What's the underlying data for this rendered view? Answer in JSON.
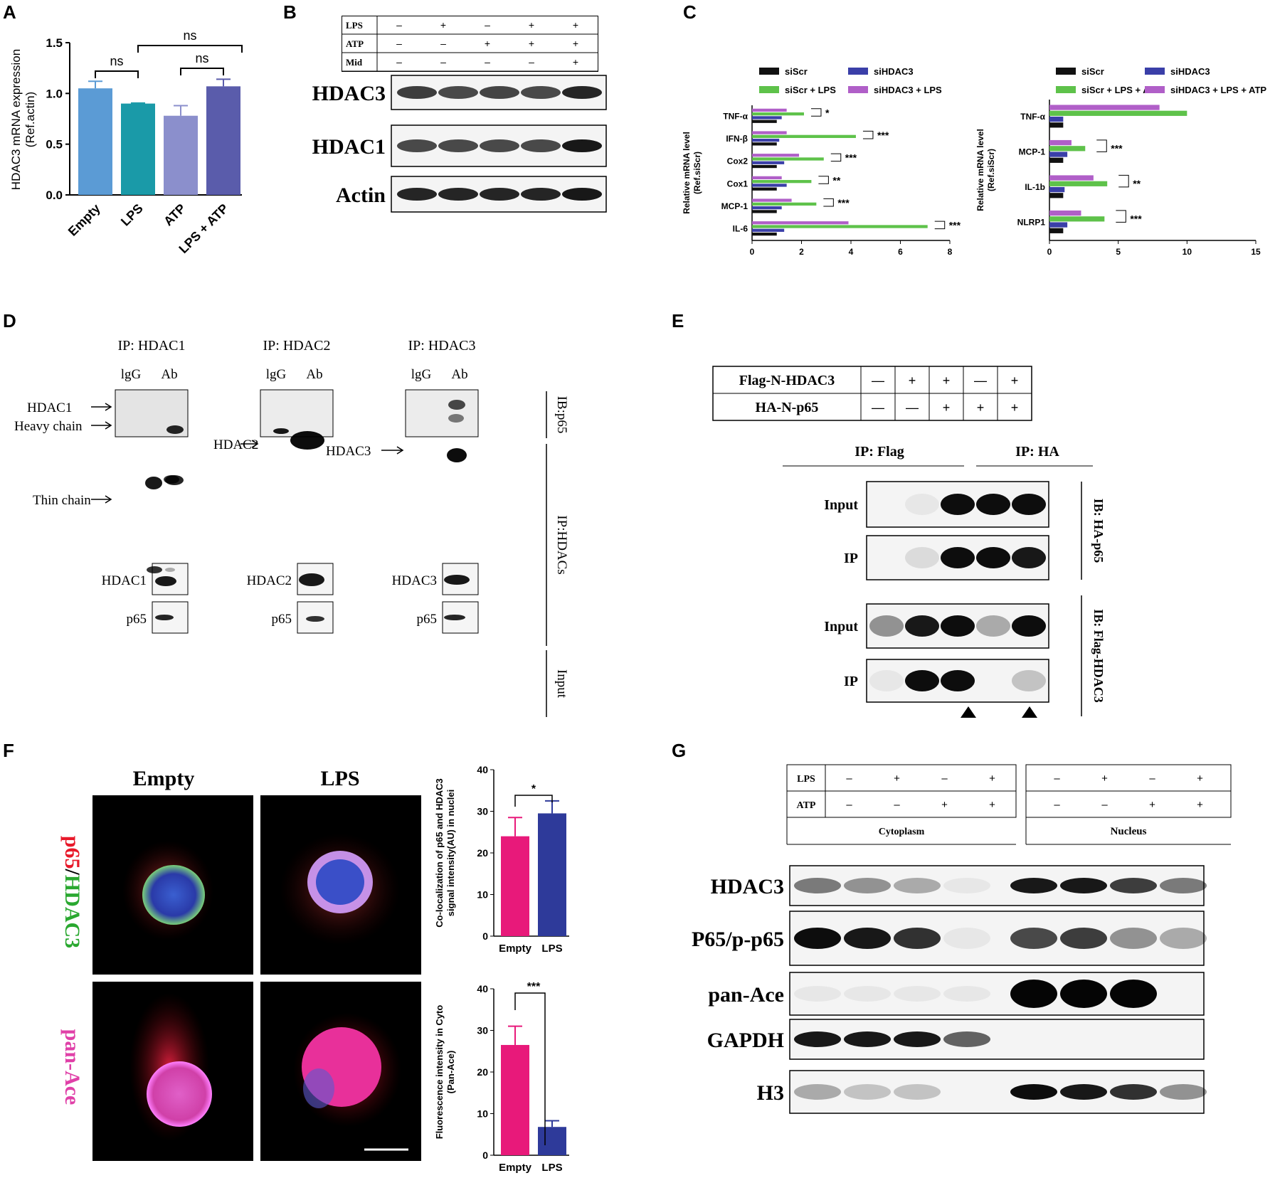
{
  "panels": {
    "A": {
      "label": "A",
      "chart_data": {
        "type": "bar",
        "categories": [
          "Empty",
          "LPS",
          "ATP",
          "LPS + ATP"
        ],
        "values": [
          1.05,
          0.9,
          0.78,
          1.07
        ],
        "errors": [
          0.07,
          0.005,
          0.1,
          0.07
        ],
        "ylabel_line1": "HDAC3 mRNA expression",
        "ylabel_line2": "(Ref.actin)",
        "yticks": [
          "0.0",
          "0.5",
          "1.0",
          "1.5"
        ],
        "ylim": [
          0,
          1.5
        ],
        "colors": [
          "#5b9bd5",
          "#1a9aa8",
          "#8b8fcc",
          "#5a5cab"
        ],
        "annotations": [
          "ns",
          "ns",
          "ns"
        ]
      }
    },
    "B": {
      "label": "B",
      "conditions": [
        {
          "name": "LPS",
          "signs": [
            "–",
            "+",
            "–",
            "+",
            "+"
          ]
        },
        {
          "name": "ATP",
          "signs": [
            "–",
            "–",
            "+",
            "+",
            "+"
          ]
        },
        {
          "name": "Mid",
          "signs": [
            "–",
            "–",
            "–",
            "–",
            "+"
          ]
        }
      ],
      "blots": [
        "HDAC3",
        "HDAC1",
        "Actin"
      ]
    },
    "C": {
      "label": "C",
      "chart_data": [
        {
          "type": "bar",
          "orientation": "horizontal",
          "categories": [
            "TNF-α",
            "IFN-β",
            "Cox2",
            "Cox1",
            "MCP-1",
            "IL-6"
          ],
          "series": [
            {
              "name": "siScr",
              "color": "#111111",
              "values": [
                1,
                1,
                1,
                1,
                1,
                1
              ]
            },
            {
              "name": "siHDAC3",
              "color": "#3a3fa8",
              "values": [
                1.2,
                1.1,
                1.3,
                1.4,
                1.2,
                1.3
              ]
            },
            {
              "name": "siScr + LPS",
              "color": "#5ec24a",
              "values": [
                2.1,
                4.2,
                2.9,
                2.4,
                2.6,
                7.1
              ]
            },
            {
              "name": "siHDAC3 + LPS",
              "color": "#b05fc8",
              "values": [
                1.4,
                1.4,
                1.9,
                1.2,
                1.6,
                3.9
              ]
            }
          ],
          "significance": [
            "*",
            "***",
            "***",
            "**",
            "***",
            "***"
          ],
          "xticks": [
            "0",
            "2",
            "4",
            "6",
            "8"
          ],
          "xlim": [
            0,
            8
          ],
          "ylabel_line1": "Relative mRNA level",
          "ylabel_line2": "(Ref.siScr)"
        },
        {
          "type": "bar",
          "orientation": "horizontal",
          "categories": [
            "TNF-α",
            "MCP-1",
            "IL-1b",
            "NLRP1"
          ],
          "series": [
            {
              "name": "siScr",
              "color": "#111111",
              "values": [
                1,
                1,
                1,
                1
              ]
            },
            {
              "name": "siHDAC3",
              "color": "#3a3fa8",
              "values": [
                1,
                1.3,
                1.1,
                1.3
              ]
            },
            {
              "name": "siScr + LPS + ATP",
              "color": "#5ec24a",
              "values": [
                10,
                2.6,
                4.2,
                4
              ]
            },
            {
              "name": "siHDAC3 + LPS + ATP",
              "color": "#b05fc8",
              "values": [
                8,
                1.6,
                3.2,
                2.3
              ]
            }
          ],
          "significance": [
            "",
            "***",
            "**",
            "***"
          ],
          "xticks": [
            "0",
            "5",
            "10",
            "15"
          ],
          "xlim": [
            0,
            15
          ],
          "ylabel_line1": "Relative mRNA level",
          "ylabel_line2": "(Ref.siScr)"
        }
      ]
    },
    "D": {
      "label": "D",
      "ip_titles": [
        "IP: HDAC1",
        "IP: HDAC2",
        "IP: HDAC3"
      ],
      "lane_labels": [
        "lgG",
        "Ab"
      ],
      "arrows": {
        "hdac1": "HDAC1",
        "heavy": "Heavy  chain",
        "thin": "Thin chain",
        "hdac2": "HDAC2",
        "hdac3": "HDAC3"
      },
      "side_labels": [
        "IB:p65",
        "IP:HDACs",
        "Input"
      ],
      "input_labels": [
        "HDAC1",
        "HDAC2",
        "HDAC3"
      ],
      "p65_label": "p65"
    },
    "E": {
      "label": "E",
      "conditions": [
        {
          "name": "Flag-N-HDAC3",
          "signs": [
            "—",
            "+",
            "+",
            "—",
            "+"
          ]
        },
        {
          "name": "HA-N-p65",
          "signs": [
            "—",
            "—",
            "+",
            "+",
            "+"
          ]
        }
      ],
      "ip_headers": [
        "IP: Flag",
        "IP: HA"
      ],
      "rows": [
        "Input",
        "IP",
        "Input",
        "IP"
      ],
      "side_labels": [
        "IB: HA-p65",
        "IB: Flag-HDAC3"
      ]
    },
    "F": {
      "label": "F",
      "col_titles": [
        "Empty",
        "LPS"
      ],
      "row1_label_parts": [
        "p65",
        "/",
        "HDAC3"
      ],
      "row2_label": "pan-Ace",
      "chart_data": [
        {
          "type": "bar",
          "categories": [
            "Empty",
            "LPS"
          ],
          "values": [
            24,
            29.5
          ],
          "errors": [
            4.5,
            3
          ],
          "colors": [
            "#e8197a",
            "#2e3a9a"
          ],
          "yticks": [
            "0",
            "10",
            "20",
            "30",
            "40"
          ],
          "ylim": [
            0,
            40
          ],
          "ylabel_line1": "Co-localization of p65 and HDAC3",
          "ylabel_line2": "signal intensity(AU) in nuclei",
          "significance": "*"
        },
        {
          "type": "bar",
          "categories": [
            "Empty",
            "LPS"
          ],
          "values": [
            26.5,
            6.8
          ],
          "errors": [
            4.5,
            1.5
          ],
          "colors": [
            "#e8197a",
            "#2e3a9a"
          ],
          "yticks": [
            "0",
            "10",
            "20",
            "30",
            "40"
          ],
          "ylim": [
            0,
            40
          ],
          "ylabel_line1": "Fluorescence intensity in Cyto",
          "ylabel_line2": "(Pan-Ace)",
          "significance": "***"
        }
      ]
    },
    "G": {
      "label": "G",
      "conditions": [
        {
          "name": "LPS",
          "signs": [
            "–",
            "+",
            "–",
            "+",
            "–",
            "+",
            "–",
            "+"
          ]
        },
        {
          "name": "ATP",
          "signs": [
            "–",
            "–",
            "+",
            "+",
            "–",
            "–",
            "+",
            "+"
          ]
        }
      ],
      "fractions": [
        "Cytoplasm",
        "Nucleus"
      ],
      "blots": [
        "HDAC3",
        "P65/p-p65",
        "pan-Ace",
        "GAPDH",
        "H3"
      ]
    }
  }
}
